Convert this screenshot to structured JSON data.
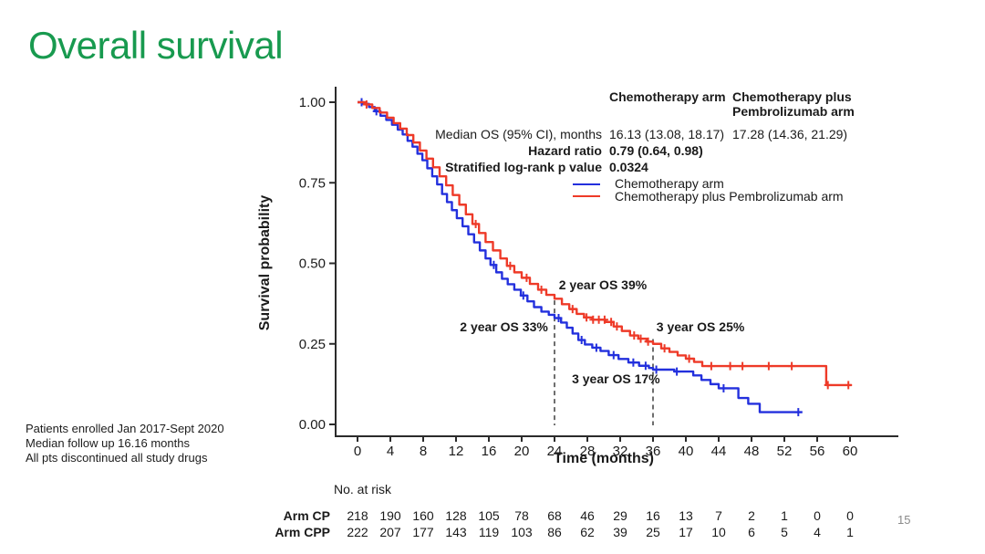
{
  "slide": {
    "title": "Overall survival",
    "page_number": "15"
  },
  "notes": [
    "Patients enrolled Jan 2017-Sept 2020",
    "Median follow up 16.16 months",
    "All pts discontinued all study drugs"
  ],
  "colors": {
    "title_green": "#189a4f",
    "cp_blue": "#2330dd",
    "cpp_red": "#ee3a28",
    "axis": "#2b2b2b",
    "dashed_line": "#4a4a4a",
    "page_number": "#8a8a8a"
  },
  "stats": {
    "row_labels": [
      "Median OS (95% CI), months",
      "Hazard ratio",
      "Stratified log-rank p value"
    ],
    "columns": [
      {
        "header": "Chemotherapy arm",
        "median": "16.13 (13.08, 18.17)",
        "hr": "0.79 (0.64, 0.98)",
        "p": "0.0324"
      },
      {
        "header": "Chemotherapy plus Pembrolizumab arm",
        "median": "17.28 (14.36, 21.29)"
      }
    ]
  },
  "chart_data": {
    "type": "line",
    "subtype": "kaplan-meier-step",
    "xlabel": "Time (months)",
    "ylabel": "Survival probability",
    "xlim": [
      0,
      60
    ],
    "ylim": [
      0.0,
      1.0
    ],
    "x_ticks": [
      0,
      4,
      8,
      12,
      16,
      20,
      24,
      28,
      32,
      36,
      40,
      44,
      48,
      52,
      56,
      60
    ],
    "x_tick_labels": [
      "0",
      "4",
      "8",
      "12",
      "16",
      "20",
      "24",
      "28",
      "32",
      "36",
      "40",
      "44",
      "48",
      "52",
      "56",
      "60"
    ],
    "y_ticks": [
      0.0,
      0.25,
      0.5,
      0.75,
      1.0
    ],
    "y_tick_labels": [
      "0.00",
      "0.25",
      "0.50",
      "0.75",
      "1.00"
    ],
    "legend_position": "top-right-inside",
    "grid": false,
    "series": [
      {
        "name": "Chemotherapy arm",
        "color": "#2330dd",
        "steps": [
          [
            0,
            1.0
          ],
          [
            0.7,
            0.995
          ],
          [
            1.4,
            0.985
          ],
          [
            2.1,
            0.972
          ],
          [
            2.8,
            0.958
          ],
          [
            3.5,
            0.945
          ],
          [
            4.2,
            0.93
          ],
          [
            4.9,
            0.915
          ],
          [
            5.5,
            0.9
          ],
          [
            6.1,
            0.88
          ],
          [
            6.7,
            0.862
          ],
          [
            7.3,
            0.84
          ],
          [
            7.9,
            0.82
          ],
          [
            8.5,
            0.795
          ],
          [
            9.1,
            0.77
          ],
          [
            9.7,
            0.745
          ],
          [
            10.3,
            0.715
          ],
          [
            10.9,
            0.69
          ],
          [
            11.5,
            0.665
          ],
          [
            12.1,
            0.64
          ],
          [
            12.8,
            0.615
          ],
          [
            13.5,
            0.59
          ],
          [
            14.2,
            0.565
          ],
          [
            14.9,
            0.54
          ],
          [
            15.6,
            0.515
          ],
          [
            16.2,
            0.495
          ],
          [
            16.9,
            0.472
          ],
          [
            17.6,
            0.452
          ],
          [
            18.3,
            0.435
          ],
          [
            19.1,
            0.418
          ],
          [
            19.9,
            0.4
          ],
          [
            20.7,
            0.382
          ],
          [
            21.5,
            0.364
          ],
          [
            22.4,
            0.35
          ],
          [
            23.3,
            0.34
          ],
          [
            24,
            0.33
          ],
          [
            24.8,
            0.316
          ],
          [
            25.5,
            0.3
          ],
          [
            26.2,
            0.282
          ],
          [
            26.9,
            0.262
          ],
          [
            27.7,
            0.248
          ],
          [
            28.6,
            0.238
          ],
          [
            29.6,
            0.228
          ],
          [
            30.6,
            0.215
          ],
          [
            31.8,
            0.203
          ],
          [
            33,
            0.192
          ],
          [
            34.3,
            0.182
          ],
          [
            35.5,
            0.175
          ],
          [
            36,
            0.17
          ],
          [
            38.6,
            0.164
          ],
          [
            40.9,
            0.152
          ],
          [
            41.9,
            0.138
          ],
          [
            43,
            0.125
          ],
          [
            44,
            0.112
          ],
          [
            46.4,
            0.082
          ],
          [
            47.6,
            0.064
          ],
          [
            49,
            0.038
          ],
          [
            54.2,
            0.038
          ]
        ],
        "censor_times": [
          0.5,
          2.3,
          16.6,
          20.2,
          24.5,
          27.3,
          29.1,
          31.2,
          33.6,
          35.1,
          36.4,
          38.9,
          44.6,
          53.7
        ],
        "milestones": {
          "os_2yr": "33%",
          "os_3yr": "17%"
        },
        "median_os_months": 16.13
      },
      {
        "name": "Chemotherapy plus Pembrolizumab arm",
        "color": "#ee3a28",
        "steps": [
          [
            0,
            1.0
          ],
          [
            0.9,
            0.993
          ],
          [
            1.8,
            0.982
          ],
          [
            2.7,
            0.968
          ],
          [
            3.6,
            0.952
          ],
          [
            4.4,
            0.935
          ],
          [
            5.2,
            0.918
          ],
          [
            6,
            0.898
          ],
          [
            6.8,
            0.875
          ],
          [
            7.6,
            0.85
          ],
          [
            8.4,
            0.825
          ],
          [
            9.2,
            0.798
          ],
          [
            10,
            0.77
          ],
          [
            10.8,
            0.742
          ],
          [
            11.6,
            0.712
          ],
          [
            12.4,
            0.682
          ],
          [
            13.2,
            0.652
          ],
          [
            14,
            0.622
          ],
          [
            14.8,
            0.594
          ],
          [
            15.6,
            0.566
          ],
          [
            16.5,
            0.54
          ],
          [
            17.4,
            0.515
          ],
          [
            18.2,
            0.492
          ],
          [
            19.1,
            0.472
          ],
          [
            20,
            0.455
          ],
          [
            21,
            0.436
          ],
          [
            22,
            0.418
          ],
          [
            23,
            0.402
          ],
          [
            24,
            0.39
          ],
          [
            24.9,
            0.373
          ],
          [
            25.8,
            0.358
          ],
          [
            26.7,
            0.343
          ],
          [
            27.6,
            0.332
          ],
          [
            28.6,
            0.325
          ],
          [
            30.2,
            0.318
          ],
          [
            31.2,
            0.304
          ],
          [
            32.2,
            0.29
          ],
          [
            33.2,
            0.276
          ],
          [
            34.2,
            0.266
          ],
          [
            35.2,
            0.257
          ],
          [
            36,
            0.25
          ],
          [
            37,
            0.236
          ],
          [
            38,
            0.225
          ],
          [
            39,
            0.214
          ],
          [
            40,
            0.204
          ],
          [
            41,
            0.194
          ],
          [
            42,
            0.181
          ],
          [
            56.8,
            0.181
          ],
          [
            57.1,
            0.122
          ],
          [
            60.2,
            0.122
          ]
        ],
        "censor_times": [
          1.1,
          14.4,
          18.6,
          20.6,
          22.4,
          26.2,
          27.9,
          28.7,
          29.4,
          30.1,
          30.9,
          31.6,
          33.7,
          34.5,
          35.4,
          37.4,
          40.4,
          43.1,
          45.4,
          46.9,
          50.1,
          52.9,
          57.3,
          59.8
        ],
        "milestones": {
          "os_2yr": "39%",
          "os_3yr": "25%"
        },
        "median_os_months": 17.28
      }
    ],
    "dashed_lines": [
      {
        "x_month": 24,
        "p_top": 0.385
      },
      {
        "x_month": 36,
        "p_top": 0.265
      }
    ],
    "annotations": [
      {
        "label": "2 year OS 39%",
        "t": 24.3,
        "p": 0.43,
        "anchor": "left"
      },
      {
        "label": "2 year OS 33%",
        "t": 23.2,
        "p": 0.3,
        "anchor": "right"
      },
      {
        "label": "3 year OS 25%",
        "t": 36.2,
        "p": 0.3,
        "anchor": "left"
      },
      {
        "label": "3 year OS 17%",
        "t": 25.9,
        "p": 0.138,
        "anchor": "left"
      }
    ],
    "at_risk": {
      "title": "No. at risk",
      "times": [
        0,
        4,
        8,
        12,
        16,
        20,
        24,
        28,
        32,
        36,
        40,
        44,
        48,
        52,
        56,
        60
      ],
      "rows": [
        {
          "label": "Arm CP",
          "values": [
            218,
            190,
            160,
            128,
            105,
            78,
            68,
            46,
            29,
            16,
            13,
            7,
            2,
            1,
            0,
            0
          ]
        },
        {
          "label": "Arm CPP",
          "values": [
            222,
            207,
            177,
            143,
            119,
            103,
            86,
            62,
            39,
            25,
            17,
            10,
            6,
            5,
            4,
            1
          ]
        }
      ]
    }
  }
}
